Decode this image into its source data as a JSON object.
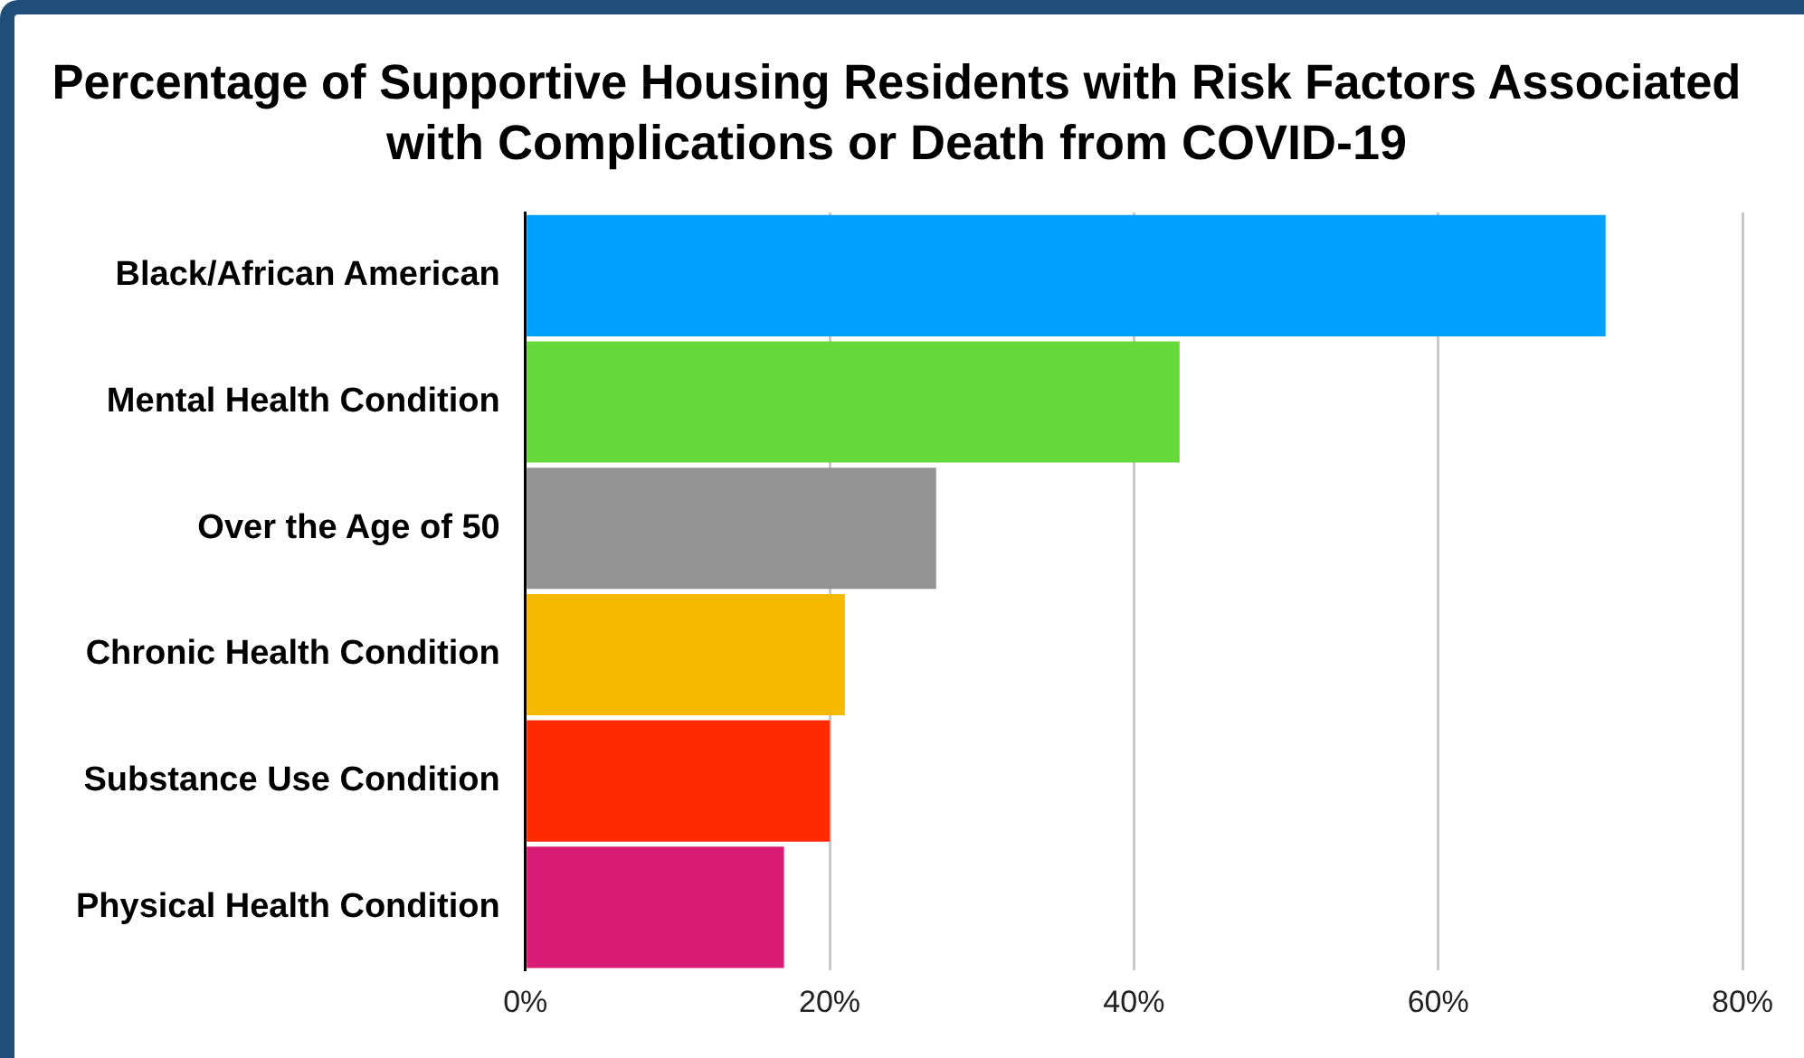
{
  "chart_data": {
    "type": "bar",
    "orientation": "horizontal",
    "title": "Percentage of Supportive Housing Residents with Risk Factors Associated with Complications or Death from COVID-19",
    "categories": [
      "Black/African American",
      "Mental Health Condition",
      "Over the Age of 50",
      "Chronic Health Condition",
      "Substance Use Condition",
      "Physical Health Condition"
    ],
    "values": [
      71,
      43,
      27,
      21,
      20,
      17
    ],
    "colors": [
      "#00a0ff",
      "#66d93a",
      "#939393",
      "#f7b900",
      "#ff2a00",
      "#d81b74"
    ],
    "xlim": [
      0,
      80
    ],
    "xticks": [
      {
        "value": 0,
        "label": "0%"
      },
      {
        "value": 20,
        "label": "20%"
      },
      {
        "value": 40,
        "label": "40%"
      },
      {
        "value": 60,
        "label": "60%"
      },
      {
        "value": 80,
        "label": "80%"
      }
    ],
    "grid": "x"
  }
}
